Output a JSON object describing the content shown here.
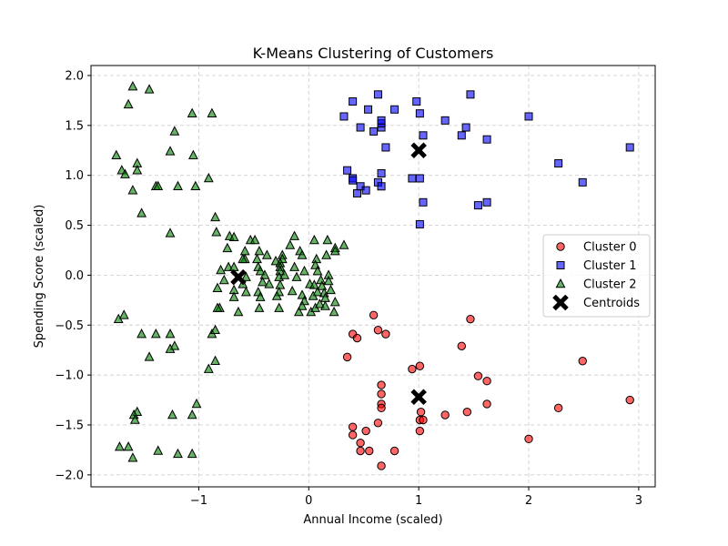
{
  "chart_data": {
    "type": "scatter",
    "title": "K-Means Clustering of Customers",
    "xlabel": "Annual Income (scaled)",
    "ylabel": "Spending Score (scaled)",
    "xlim": [
      -1.98,
      3.15
    ],
    "ylim": [
      -2.12,
      2.1
    ],
    "xticks": [
      -1,
      0,
      1,
      2,
      3
    ],
    "xtick_labels": [
      "−1",
      "0",
      "1",
      "2",
      "3"
    ],
    "yticks": [
      -2.0,
      -1.5,
      -1.0,
      -0.5,
      0.0,
      0.5,
      1.0,
      1.5,
      2.0
    ],
    "ytick_labels": [
      "−2.0",
      "−1.5",
      "−1.0",
      "−0.5",
      "0.0",
      "0.5",
      "1.0",
      "1.5",
      "2.0"
    ],
    "grid": true,
    "legend_position": "center-right",
    "series": [
      {
        "name": "Cluster 0",
        "marker": "circle",
        "color": "#ff0000",
        "points": [
          [
            0.59,
            -0.4
          ],
          [
            0.4,
            -0.59
          ],
          [
            0.44,
            -0.63
          ],
          [
            0.63,
            -0.55
          ],
          [
            0.7,
            -0.59
          ],
          [
            0.35,
            -0.82
          ],
          [
            1.47,
            -0.44
          ],
          [
            1.39,
            -0.71
          ],
          [
            0.94,
            -0.94
          ],
          [
            1.01,
            -0.91
          ],
          [
            1.54,
            -1.01
          ],
          [
            1.62,
            -1.06
          ],
          [
            2.49,
            -0.86
          ],
          [
            0.66,
            -1.1
          ],
          [
            0.66,
            -1.19
          ],
          [
            0.66,
            -1.29
          ],
          [
            0.66,
            -1.33
          ],
          [
            1.02,
            -1.37
          ],
          [
            1.01,
            -1.45
          ],
          [
            1.04,
            -1.45
          ],
          [
            1.01,
            -1.56
          ],
          [
            1.62,
            -1.29
          ],
          [
            1.44,
            -1.37
          ],
          [
            1.24,
            -1.4
          ],
          [
            2.27,
            -1.33
          ],
          [
            2.92,
            -1.25
          ],
          [
            0.4,
            -1.52
          ],
          [
            0.52,
            -1.56
          ],
          [
            0.63,
            -1.48
          ],
          [
            0.4,
            -1.6
          ],
          [
            0.47,
            -1.68
          ],
          [
            0.47,
            -1.76
          ],
          [
            0.55,
            -1.76
          ],
          [
            0.78,
            -1.76
          ],
          [
            2.0,
            -1.64
          ],
          [
            0.66,
            -1.91
          ]
        ]
      },
      {
        "name": "Cluster 1",
        "marker": "square",
        "color": "#0000ff",
        "points": [
          [
            0.4,
            1.74
          ],
          [
            0.63,
            1.81
          ],
          [
            0.98,
            1.74
          ],
          [
            1.47,
            1.81
          ],
          [
            0.32,
            1.59
          ],
          [
            0.54,
            1.66
          ],
          [
            0.78,
            1.66
          ],
          [
            1.01,
            1.62
          ],
          [
            0.47,
            1.48
          ],
          [
            0.59,
            1.44
          ],
          [
            0.66,
            1.48
          ],
          [
            0.66,
            1.52
          ],
          [
            0.66,
            1.55
          ],
          [
            1.24,
            1.55
          ],
          [
            1.43,
            1.48
          ],
          [
            1.39,
            1.4
          ],
          [
            1.04,
            1.4
          ],
          [
            1.62,
            1.36
          ],
          [
            2.0,
            1.59
          ],
          [
            0.7,
            1.28
          ],
          [
            2.92,
            1.28
          ],
          [
            2.27,
            1.12
          ],
          [
            0.35,
            1.05
          ],
          [
            0.4,
            0.97
          ],
          [
            0.4,
            0.95
          ],
          [
            0.66,
            1.02
          ],
          [
            0.94,
            0.97
          ],
          [
            1.01,
            0.97
          ],
          [
            2.49,
            0.93
          ],
          [
            0.47,
            0.89
          ],
          [
            0.52,
            0.85
          ],
          [
            0.63,
            0.93
          ],
          [
            0.66,
            0.89
          ],
          [
            0.44,
            0.82
          ],
          [
            1.04,
            0.73
          ],
          [
            1.54,
            0.7
          ],
          [
            1.62,
            0.73
          ],
          [
            1.01,
            0.51
          ]
        ]
      },
      {
        "name": "Cluster 2",
        "marker": "triangle",
        "color": "#008000",
        "points": [
          [
            -1.6,
            1.89
          ],
          [
            -1.45,
            1.86
          ],
          [
            -1.64,
            1.71
          ],
          [
            -1.06,
            1.62
          ],
          [
            -0.88,
            1.62
          ],
          [
            -1.22,
            1.44
          ],
          [
            -1.26,
            1.24
          ],
          [
            -1.05,
            1.2
          ],
          [
            -1.75,
            1.2
          ],
          [
            -1.56,
            1.12
          ],
          [
            -1.56,
            1.05
          ],
          [
            -1.7,
            1.05
          ],
          [
            -1.67,
            1.01
          ],
          [
            -0.91,
            0.97
          ],
          [
            -1.39,
            0.89
          ],
          [
            -1.37,
            0.89
          ],
          [
            -1.19,
            0.89
          ],
          [
            -1.03,
            0.89
          ],
          [
            -1.6,
            0.85
          ],
          [
            -1.52,
            0.62
          ],
          [
            -0.85,
            0.58
          ],
          [
            -1.26,
            0.42
          ],
          [
            -0.84,
            0.43
          ],
          [
            -0.72,
            0.39
          ],
          [
            -0.68,
            0.38
          ],
          [
            -0.53,
            0.35
          ],
          [
            -0.49,
            0.35
          ],
          [
            -0.13,
            0.39
          ],
          [
            -0.17,
            0.3
          ],
          [
            0.05,
            0.35
          ],
          [
            0.17,
            0.35
          ],
          [
            0.32,
            0.3
          ],
          [
            0.24,
            0.27
          ],
          [
            0.24,
            0.24
          ],
          [
            -0.74,
            0.27
          ],
          [
            -0.58,
            0.24
          ],
          [
            -0.45,
            0.24
          ],
          [
            -0.38,
            0.2
          ],
          [
            -0.58,
            0.16
          ],
          [
            -0.73,
            0.08
          ],
          [
            -0.68,
            0.08
          ],
          [
            -0.6,
            0.16
          ],
          [
            -0.47,
            0.16
          ],
          [
            -0.24,
            0.2
          ],
          [
            -0.08,
            0.24
          ],
          [
            -0.06,
            0.2
          ],
          [
            -0.24,
            0.16
          ],
          [
            -0.3,
            0.14
          ],
          [
            0.07,
            0.16
          ],
          [
            0.16,
            0.2
          ],
          [
            -0.46,
            0.08
          ],
          [
            -0.44,
            0.04
          ],
          [
            -0.26,
            0.12
          ],
          [
            -0.26,
            0.08
          ],
          [
            -0.13,
            0.08
          ],
          [
            0.06,
            0.1
          ],
          [
            -0.8,
            0.05
          ],
          [
            -0.77,
            -0.05
          ],
          [
            -0.57,
            -0.02
          ],
          [
            -0.4,
            0.0
          ],
          [
            -0.26,
            0.04
          ],
          [
            -0.27,
            -0.02
          ],
          [
            -0.22,
            0.0
          ],
          [
            -0.11,
            -0.02
          ],
          [
            -0.04,
            0.04
          ],
          [
            0.08,
            0.04
          ],
          [
            0.11,
            -0.05
          ],
          [
            0.18,
            0.0
          ],
          [
            -0.6,
            -0.09
          ],
          [
            -0.42,
            -0.07
          ],
          [
            -0.36,
            -0.09
          ],
          [
            -0.26,
            -0.1
          ],
          [
            0.01,
            -0.09
          ],
          [
            0.05,
            -0.1
          ],
          [
            0.12,
            -0.11
          ],
          [
            0.18,
            -0.06
          ],
          [
            -0.83,
            -0.13
          ],
          [
            -0.68,
            -0.15
          ],
          [
            -0.57,
            -0.17
          ],
          [
            -0.46,
            -0.17
          ],
          [
            -0.27,
            -0.17
          ],
          [
            -0.15,
            -0.16
          ],
          [
            -0.06,
            -0.2
          ],
          [
            0.08,
            -0.17
          ],
          [
            0.14,
            -0.18
          ],
          [
            0.2,
            -0.15
          ],
          [
            -0.68,
            -0.22
          ],
          [
            -0.44,
            -0.22
          ],
          [
            -0.29,
            -0.21
          ],
          [
            -0.04,
            -0.26
          ],
          [
            0.04,
            -0.21
          ],
          [
            0.15,
            -0.23
          ],
          [
            0.24,
            -0.27
          ],
          [
            -0.81,
            -0.33
          ],
          [
            -0.83,
            -0.33
          ],
          [
            -0.64,
            -0.37
          ],
          [
            -0.45,
            -0.33
          ],
          [
            -0.27,
            -0.33
          ],
          [
            -0.06,
            -0.31
          ],
          [
            0.02,
            -0.37
          ],
          [
            0.06,
            -0.33
          ],
          [
            0.1,
            -0.29
          ],
          [
            0.15,
            -0.31
          ],
          [
            -0.09,
            -0.37
          ],
          [
            0.23,
            -0.37
          ],
          [
            -1.73,
            -0.44
          ],
          [
            -1.68,
            -0.4
          ],
          [
            -1.52,
            -0.59
          ],
          [
            -1.39,
            -0.59
          ],
          [
            -1.26,
            -0.59
          ],
          [
            -0.88,
            -0.59
          ],
          [
            -0.85,
            -0.55
          ],
          [
            -1.22,
            -0.71
          ],
          [
            -1.26,
            -0.74
          ],
          [
            -1.45,
            -0.82
          ],
          [
            -0.85,
            -0.86
          ],
          [
            -0.91,
            -0.94
          ],
          [
            -1.02,
            -1.29
          ],
          [
            -1.06,
            -1.4
          ],
          [
            -1.24,
            -1.4
          ],
          [
            -1.56,
            -1.37
          ],
          [
            -1.59,
            -1.4
          ],
          [
            -1.58,
            -1.45
          ],
          [
            -1.72,
            -1.72
          ],
          [
            -1.64,
            -1.72
          ],
          [
            -1.37,
            -1.76
          ],
          [
            -1.19,
            -1.79
          ],
          [
            -1.06,
            -1.79
          ],
          [
            -1.6,
            -1.83
          ]
        ]
      }
    ],
    "centroids": {
      "name": "Centroids",
      "marker": "x",
      "color": "#000000",
      "points": [
        [
          1.0,
          1.25
        ],
        [
          1.0,
          -1.22
        ],
        [
          -0.64,
          -0.02
        ]
      ]
    }
  }
}
